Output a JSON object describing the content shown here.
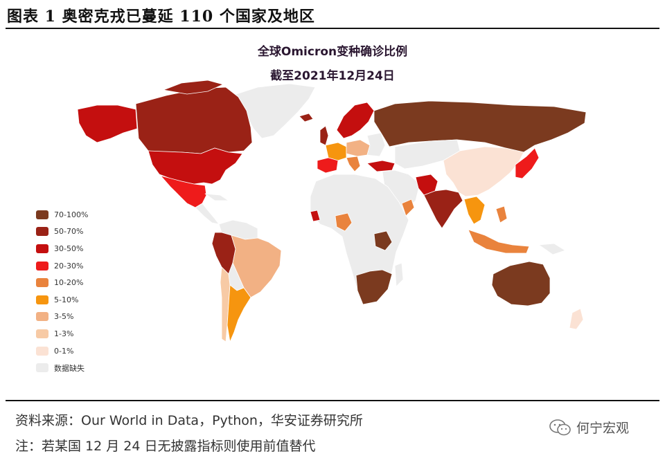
{
  "figure": {
    "title": "图表 1 奥密克戎已蔓延 110 个国家及地区",
    "source": "资料来源：Our World in Data，Python，华安证券研究所",
    "note": "注：若某国 12 月 24 日无披露指标则使用前值替代",
    "watermark": "何宁宏观",
    "watermark_icon": "wechat-icon"
  },
  "map": {
    "title": "全球Omicron变种确诊比例",
    "subtitle": "截至2021年12月24日",
    "legend": [
      {
        "label": "70-100%",
        "color": "#7b3a1f"
      },
      {
        "label": "50-70%",
        "color": "#9a2216"
      },
      {
        "label": "30-50%",
        "color": "#c40f0f"
      },
      {
        "label": "20-30%",
        "color": "#ee1b1b"
      },
      {
        "label": "10-20%",
        "color": "#e9833d"
      },
      {
        "label": "5-10%",
        "color": "#f6950f"
      },
      {
        "label": "3-5%",
        "color": "#f2b184"
      },
      {
        "label": "1-3%",
        "color": "#f7caa5"
      },
      {
        "label": "0-1%",
        "color": "#fbe2d4"
      },
      {
        "label": "数据缺失",
        "color": "#ececec"
      }
    ]
  }
}
